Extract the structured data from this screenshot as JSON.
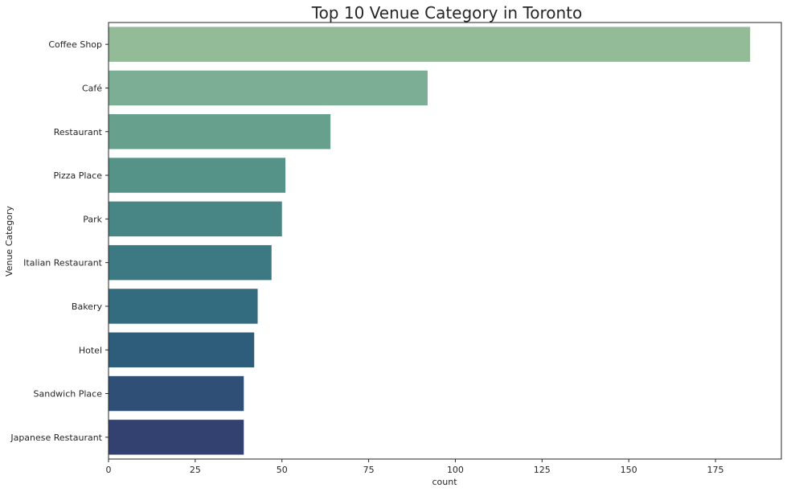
{
  "chart_data": {
    "type": "bar",
    "orientation": "horizontal",
    "title": "Top 10 Venue Category in Toronto",
    "xlabel": "count",
    "ylabel": "Venue Category",
    "categories": [
      "Coffee Shop",
      "Café",
      "Restaurant",
      "Pizza Place",
      "Park",
      "Italian Restaurant",
      "Bakery",
      "Hotel",
      "Sandwich Place",
      "Japanese Restaurant"
    ],
    "values": [
      185,
      92,
      64,
      51,
      50,
      47,
      43,
      42,
      39,
      39
    ],
    "colors": [
      "#93bb98",
      "#7cad95",
      "#67a08d",
      "#559389",
      "#478685",
      "#3c7982",
      "#336b7f",
      "#2e5d7b",
      "#2f4f77",
      "#334170"
    ],
    "xlim": [
      0,
      194
    ],
    "xticks": [
      0,
      25,
      50,
      75,
      100,
      125,
      150,
      175
    ],
    "grid": false
  }
}
